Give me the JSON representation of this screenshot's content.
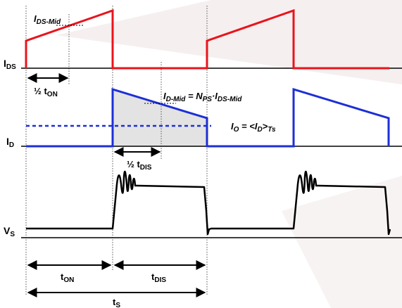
{
  "colors": {
    "ids_trace": "#e8141c",
    "id_trace": "#1d2fd6",
    "vs_trace": "#000000",
    "shade": "#e6e6e6",
    "dashed_avg": "#1d2fd6",
    "watermark": "#f1e9e9"
  },
  "labels": {
    "ids_axis": {
      "main": "I",
      "sub": "DS"
    },
    "id_axis": {
      "main": "I",
      "sub": "D"
    },
    "vs_axis": {
      "main": "V",
      "sub": "S"
    },
    "ids_mid": {
      "main": "I",
      "sub": "DS-Mid"
    },
    "half_ton": {
      "pre": "½ t",
      "sub": "ON"
    },
    "half_tdis": {
      "pre": "½ t",
      "sub": "DIS"
    },
    "id_mid_eq": {
      "i1": "I",
      "s1": "D-Mid",
      "eq": " = N",
      "s2": "PS",
      "dot": "·I",
      "s3": "DS-Mid"
    },
    "io_eq": {
      "i1": "I",
      "s1": "O",
      "eq": " = <I",
      "s2": "D",
      "gt": ">",
      "s3": "Ts"
    },
    "ton": {
      "main": "t",
      "sub": "ON"
    },
    "tdis": {
      "main": "t",
      "sub": "DIS"
    },
    "ts": {
      "main": "t",
      "sub": "S"
    }
  }
}
